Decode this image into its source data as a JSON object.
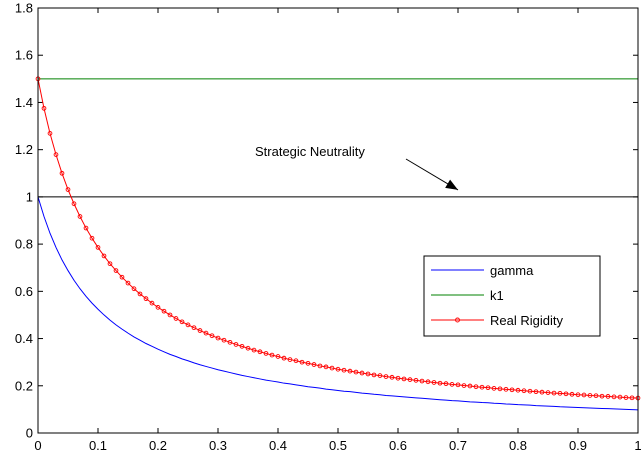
{
  "chart_data": {
    "type": "line",
    "title": "",
    "xlabel": "",
    "ylabel": "",
    "xlim": [
      0,
      1
    ],
    "ylim": [
      0,
      1.8
    ],
    "x_ticks": [
      0,
      0.1,
      0.2,
      0.3,
      0.4,
      0.5,
      0.6,
      0.7,
      0.8,
      0.9,
      1
    ],
    "x_tick_labels": [
      "0",
      "0.1",
      "0.2",
      "0.3",
      "0.4",
      "0.5",
      "0.6",
      "0.7",
      "0.8",
      "0.9",
      "1"
    ],
    "y_ticks": [
      0,
      0.2,
      0.4,
      0.6,
      0.8,
      1,
      1.2,
      1.4,
      1.6,
      1.8
    ],
    "y_tick_labels": [
      "0",
      "0.2",
      "0.4",
      "0.6",
      "0.8",
      "1",
      "1.2",
      "1.4",
      "1.6",
      "1.8"
    ],
    "grid": false,
    "legend_placement": "center-right",
    "x": [
      0,
      0.01,
      0.02,
      0.03,
      0.04,
      0.05,
      0.06,
      0.07,
      0.08,
      0.09,
      0.1,
      0.11,
      0.12,
      0.13,
      0.14,
      0.15,
      0.16,
      0.17,
      0.18,
      0.19,
      0.2,
      0.21,
      0.22,
      0.23,
      0.24,
      0.25,
      0.26,
      0.27,
      0.28,
      0.29,
      0.3,
      0.31,
      0.32,
      0.33,
      0.34,
      0.35,
      0.36,
      0.37,
      0.38,
      0.39,
      0.4,
      0.41,
      0.42,
      0.43,
      0.44,
      0.45,
      0.46,
      0.47,
      0.48,
      0.49,
      0.5,
      0.51,
      0.52,
      0.53,
      0.54,
      0.55,
      0.56,
      0.57,
      0.58,
      0.59,
      0.6,
      0.61,
      0.62,
      0.63,
      0.64,
      0.65,
      0.66,
      0.67,
      0.68,
      0.69,
      0.7,
      0.71,
      0.72,
      0.73,
      0.74,
      0.75,
      0.76,
      0.77,
      0.78,
      0.79,
      0.8,
      0.81,
      0.82,
      0.83,
      0.84,
      0.85,
      0.86,
      0.87,
      0.88,
      0.89,
      0.9,
      0.91,
      0.92,
      0.93,
      0.94,
      0.95,
      0.96,
      0.97,
      0.98,
      0.99,
      1
    ],
    "series": [
      {
        "name": "gamma",
        "color": "#0000ff",
        "marker": false,
        "values": [
          1.0,
          0.917,
          0.846,
          0.786,
          0.733,
          0.688,
          0.647,
          0.611,
          0.579,
          0.55,
          0.524,
          0.5,
          0.478,
          0.458,
          0.44,
          0.423,
          0.407,
          0.393,
          0.379,
          0.367,
          0.355,
          0.344,
          0.333,
          0.324,
          0.314,
          0.306,
          0.297,
          0.289,
          0.282,
          0.275,
          0.268,
          0.262,
          0.256,
          0.25,
          0.244,
          0.239,
          0.234,
          0.229,
          0.224,
          0.22,
          0.216,
          0.211,
          0.208,
          0.204,
          0.2,
          0.196,
          0.193,
          0.19,
          0.186,
          0.183,
          0.18,
          0.177,
          0.175,
          0.172,
          0.169,
          0.167,
          0.164,
          0.162,
          0.159,
          0.157,
          0.155,
          0.153,
          0.151,
          0.149,
          0.147,
          0.145,
          0.143,
          0.141,
          0.139,
          0.137,
          0.136,
          0.134,
          0.132,
          0.131,
          0.129,
          0.128,
          0.126,
          0.125,
          0.123,
          0.122,
          0.12,
          0.119,
          0.118,
          0.116,
          0.115,
          0.114,
          0.113,
          0.111,
          0.11,
          0.109,
          0.108,
          0.107,
          0.106,
          0.105,
          0.104,
          0.103,
          0.102,
          0.101,
          0.1,
          0.099,
          0.098
        ]
      },
      {
        "name": "k1",
        "color": "#008000",
        "marker": false,
        "values": [
          1.5,
          1.5,
          1.5,
          1.5,
          1.5,
          1.5,
          1.5,
          1.5,
          1.5,
          1.5,
          1.5,
          1.5,
          1.5,
          1.5,
          1.5,
          1.5,
          1.5,
          1.5,
          1.5,
          1.5,
          1.5,
          1.5,
          1.5,
          1.5,
          1.5,
          1.5,
          1.5,
          1.5,
          1.5,
          1.5,
          1.5,
          1.5,
          1.5,
          1.5,
          1.5,
          1.5,
          1.5,
          1.5,
          1.5,
          1.5,
          1.5,
          1.5,
          1.5,
          1.5,
          1.5,
          1.5,
          1.5,
          1.5,
          1.5,
          1.5,
          1.5,
          1.5,
          1.5,
          1.5,
          1.5,
          1.5,
          1.5,
          1.5,
          1.5,
          1.5,
          1.5,
          1.5,
          1.5,
          1.5,
          1.5,
          1.5,
          1.5,
          1.5,
          1.5,
          1.5,
          1.5,
          1.5,
          1.5,
          1.5,
          1.5,
          1.5,
          1.5,
          1.5,
          1.5,
          1.5,
          1.5,
          1.5,
          1.5,
          1.5,
          1.5,
          1.5,
          1.5,
          1.5,
          1.5,
          1.5,
          1.5,
          1.5,
          1.5,
          1.5,
          1.5,
          1.5,
          1.5,
          1.5,
          1.5,
          1.5,
          1.5
        ]
      },
      {
        "name": "Real Rigidity",
        "color": "#ff0000",
        "marker": true,
        "values": [
          1.5,
          1.375,
          1.269,
          1.179,
          1.1,
          1.031,
          0.971,
          0.917,
          0.868,
          0.825,
          0.786,
          0.75,
          0.717,
          0.688,
          0.66,
          0.635,
          0.611,
          0.589,
          0.569,
          0.55,
          0.532,
          0.516,
          0.5,
          0.485,
          0.471,
          0.458,
          0.446,
          0.434,
          0.423,
          0.412,
          0.402,
          0.393,
          0.384,
          0.375,
          0.367,
          0.359,
          0.351,
          0.344,
          0.337,
          0.33,
          0.324,
          0.317,
          0.311,
          0.306,
          0.3,
          0.295,
          0.29,
          0.284,
          0.28,
          0.275,
          0.27,
          0.266,
          0.262,
          0.258,
          0.254,
          0.25,
          0.246,
          0.243,
          0.239,
          0.236,
          0.232,
          0.229,
          0.226,
          0.223,
          0.22,
          0.217,
          0.214,
          0.211,
          0.209,
          0.206,
          0.204,
          0.201,
          0.199,
          0.196,
          0.194,
          0.192,
          0.189,
          0.187,
          0.185,
          0.183,
          0.181,
          0.179,
          0.177,
          0.175,
          0.173,
          0.171,
          0.169,
          0.168,
          0.166,
          0.164,
          0.162,
          0.161,
          0.159,
          0.158,
          0.156,
          0.155,
          0.153,
          0.152,
          0.15,
          0.149,
          0.148
        ]
      }
    ],
    "reference_line": {
      "y": 1,
      "color": "#000000"
    },
    "annotation": {
      "text": "Strategic Neutrality",
      "arrow_to": [
        0.7,
        1.0
      ]
    }
  }
}
